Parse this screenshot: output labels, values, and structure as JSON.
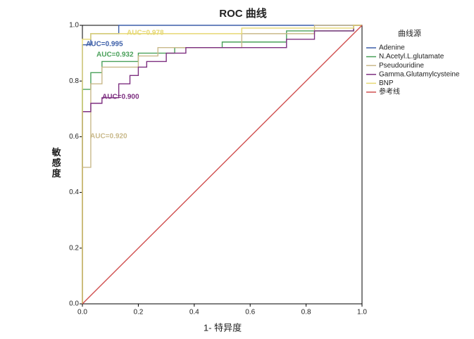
{
  "chart_data": {
    "type": "line",
    "title": "ROC 曲线",
    "x_label": "1- 特异度",
    "y_label": "敏感度",
    "legend_title": "曲线源",
    "legend": "right",
    "xlim": [
      0,
      1
    ],
    "ylim": [
      0,
      1
    ],
    "xticks": [
      {
        "value": 0,
        "label": "0.0"
      },
      0.2,
      0.4,
      0.6,
      0.8,
      {
        "value": 1,
        "label": "1.0"
      }
    ],
    "yticks": [
      {
        "value": 0,
        "label": "0.0"
      },
      0.2,
      0.4,
      0.6,
      0.8,
      {
        "value": 1,
        "label": "1.0"
      }
    ],
    "series": [
      {
        "name": "Adenine",
        "color": "#3c5ea8",
        "x": [
          0,
          0,
          0.03,
          0.03,
          0.13,
          0.13,
          1
        ],
        "values": [
          0,
          0.93,
          0.93,
          0.97,
          0.97,
          1,
          1
        ]
      },
      {
        "name": "N.Acetyl.L.glutamate",
        "color": "#4aa05a",
        "x": [
          0,
          0,
          0.03,
          0.03,
          0.07,
          0.07,
          0.2,
          0.2,
          0.33,
          0.33,
          0.5,
          0.5,
          0.73,
          0.73,
          0.97,
          0.97,
          1
        ],
        "values": [
          0,
          0.77,
          0.77,
          0.83,
          0.83,
          0.87,
          0.87,
          0.9,
          0.9,
          0.92,
          0.92,
          0.94,
          0.94,
          0.98,
          0.98,
          1,
          1
        ]
      },
      {
        "name": "Pseudouridine",
        "color": "#c9b98a",
        "x": [
          0,
          0,
          0.03,
          0.03,
          0.07,
          0.07,
          0.2,
          0.2,
          0.27,
          0.27,
          0.57,
          0.57,
          0.83,
          0.83,
          1
        ],
        "values": [
          0,
          0.49,
          0.49,
          0.79,
          0.79,
          0.85,
          0.85,
          0.89,
          0.89,
          0.92,
          0.92,
          0.97,
          0.97,
          1,
          1
        ]
      },
      {
        "name": "Gamma.Glutamylcysteine",
        "color": "#7d2f80",
        "x": [
          0,
          0,
          0.03,
          0.03,
          0.07,
          0.07,
          0.13,
          0.13,
          0.17,
          0.17,
          0.2,
          0.2,
          0.23,
          0.23,
          0.3,
          0.3,
          0.37,
          0.37,
          0.73,
          0.73,
          0.83,
          0.83,
          0.97,
          0.97,
          1
        ],
        "values": [
          0,
          0.69,
          0.69,
          0.72,
          0.72,
          0.74,
          0.74,
          0.79,
          0.79,
          0.82,
          0.82,
          0.85,
          0.85,
          0.87,
          0.87,
          0.9,
          0.9,
          0.92,
          0.92,
          0.95,
          0.95,
          0.98,
          0.98,
          1,
          1
        ]
      },
      {
        "name": "BNP",
        "color": "#e6d873",
        "x": [
          0,
          0,
          0.03,
          0.03,
          0.57,
          0.57,
          0.97,
          0.97,
          1
        ],
        "values": [
          0,
          0.95,
          0.95,
          0.97,
          0.97,
          0.99,
          0.99,
          1,
          1
        ]
      },
      {
        "name": "参考线",
        "color": "#d05050",
        "x": [
          0,
          1
        ],
        "values": [
          0,
          1
        ]
      }
    ],
    "annotations": [
      {
        "text": "AUC=0.995",
        "color": "#3c5ea8"
      },
      {
        "text": "AUC=0.978",
        "color": "#e6d873"
      },
      {
        "text": "AUC=0.932",
        "color": "#4aa05a"
      },
      {
        "text": "AUC=0.900",
        "color": "#7d2f80"
      },
      {
        "text": "AUC=0.920",
        "color": "#c9b98a"
      }
    ]
  }
}
